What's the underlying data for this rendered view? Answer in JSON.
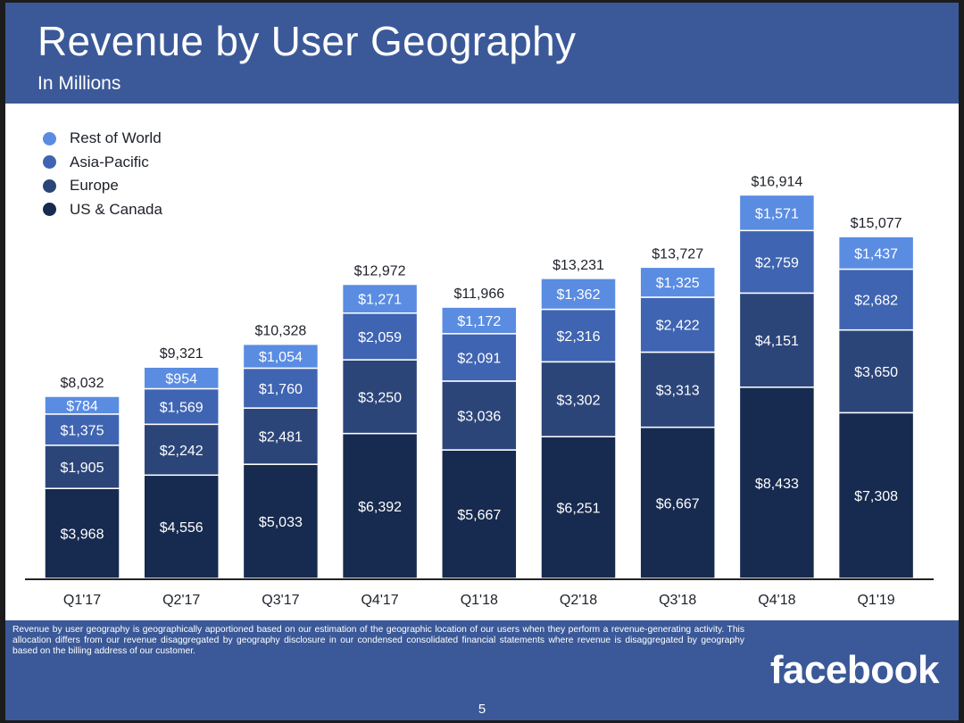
{
  "slide": {
    "title": "Revenue by User Geography",
    "subtitle": "In Millions",
    "footnote": "Revenue by user geography is geographically apportioned based on our estimation of the geographic location of our users when they perform a revenue-generating activity. This allocation differs from our revenue disaggregated by geography disclosure in our condensed consolidated financial statements where revenue is disaggregated by geography based on the billing address of our customer.",
    "brand": "facebook",
    "page_number": "5"
  },
  "colors": {
    "header_bg": "#3b5998",
    "us_canada": "#172a4f",
    "europe": "#2c4579",
    "asia_pacific": "#3f64b1",
    "rest_of_world": "#5a8ce2",
    "axis": "#222222"
  },
  "chart_data": {
    "type": "bar",
    "stacked": true,
    "title": "Revenue by User Geography",
    "subtitle": "In Millions",
    "xlabel": "",
    "ylabel": "",
    "ylim": [
      0,
      17500
    ],
    "grid": false,
    "legend_position": "top-left",
    "categories": [
      "Q1'17",
      "Q2'17",
      "Q3'17",
      "Q4'17",
      "Q1'18",
      "Q2'18",
      "Q3'18",
      "Q4'18",
      "Q1'19"
    ],
    "series": [
      {
        "name": "US & Canada",
        "color": "#172a4f",
        "values": [
          3968,
          4556,
          5033,
          6392,
          5667,
          6251,
          6667,
          8433,
          7308
        ],
        "labels": [
          "$3,968",
          "$4,556",
          "$5,033",
          "$6,392",
          "$5,667",
          "$6,251",
          "$6,667",
          "$8,433",
          "$7,308"
        ]
      },
      {
        "name": "Europe",
        "color": "#2c4579",
        "values": [
          1905,
          2242,
          2481,
          3250,
          3036,
          3302,
          3313,
          4151,
          3650
        ],
        "labels": [
          "$1,905",
          "$2,242",
          "$2,481",
          "$3,250",
          "$3,036",
          "$3,302",
          "$3,313",
          "$4,151",
          "$3,650"
        ]
      },
      {
        "name": "Asia-Pacific",
        "color": "#3f64b1",
        "values": [
          1375,
          1569,
          1760,
          2059,
          2091,
          2316,
          2422,
          2759,
          2682
        ],
        "labels": [
          "$1,375",
          "$1,569",
          "$1,760",
          "$2,059",
          "$2,091",
          "$2,316",
          "$2,422",
          "$2,759",
          "$2,682"
        ]
      },
      {
        "name": "Rest of World",
        "color": "#5a8ce2",
        "values": [
          784,
          954,
          1054,
          1271,
          1172,
          1362,
          1325,
          1571,
          1437
        ],
        "labels": [
          "$784",
          "$954",
          "$1,054",
          "$1,271",
          "$1,172",
          "$1,362",
          "$1,325",
          "$1,571",
          "$1,437"
        ]
      }
    ],
    "totals": [
      8032,
      9321,
      10328,
      12972,
      11966,
      13231,
      13727,
      16914,
      15077
    ],
    "total_labels": [
      "$8,032",
      "$9,321",
      "$10,328",
      "$12,972",
      "$11,966",
      "$13,231",
      "$13,727",
      "$16,914",
      "$15,077"
    ],
    "legend": [
      "Rest of World",
      "Asia-Pacific",
      "Europe",
      "US & Canada"
    ]
  }
}
